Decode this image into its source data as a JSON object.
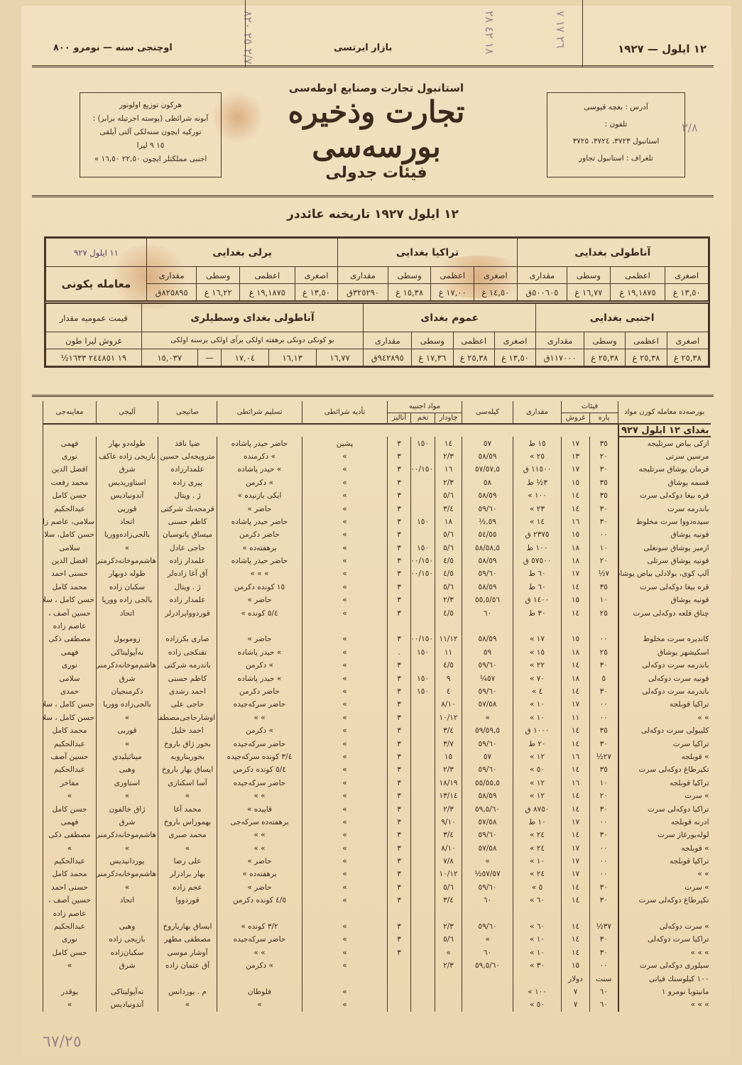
{
  "top": {
    "right": "١٢ ايلول — ١٩٢٧",
    "center": "بازار ايرتسی",
    "left": "اوچنجی سنه — نومرو ٨٠٠"
  },
  "handwritten": {
    "top_a": "٢/٧ ٢٥ ٨٢٠",
    "top_b": "١٨ ٤٢ ٢٨",
    "top_c": "٢٦ ١٧ ٧",
    "side": "٣/٨",
    "bottom": "٦٧/٢٥"
  },
  "header": {
    "org": "استانبول تجارت وصنايع اوطه‌سی",
    "title": "تجارت وذخيره بورسه‌سی",
    "subtitle": "فيئات جدولی",
    "left_box": [
      "هركون توزيع اولونور",
      "آبونه شرائطی (پوسته اجرتيله برابر) :",
      "توركيه ايچون     سنه‌لكی  آلتی آيلقی",
      "١٥      ٩   ليرا",
      "اجنبی مملكتلر ايچون ٢٢,٥٠  ١٦,٥٠ »"
    ],
    "right_box": [
      "آدرس : بغچه قپوسی",
      "تلفون :",
      "استانبول ٣٧٢٣، ٣٧٢٤، ٣٧٢٥",
      "تلغراف : استانبول تجاور"
    ],
    "date_line": "١٢ ايلول ١٩٢٧ تاريخنه عائددر"
  },
  "summary": {
    "date": "١١ ايلول ٩٢٧",
    "day_label": "معامله يكونی",
    "sub": [
      "اصغری",
      "اعظمی",
      "وسطی",
      "مقداری"
    ],
    "groups_row1": [
      {
        "name": "آناطولی بغدايی",
        "values": [
          "١٣,٥٠ غ",
          "١٩,١٨٧٥ غ",
          "١٦,٧٧ غ",
          "٥٠٠٦٠٥ق"
        ]
      },
      {
        "name": "تراكيا بغدايی",
        "values": [
          "١٤,٥٠ غ",
          "١٧,٠٠ غ",
          "١٥,٣٨ غ",
          "٣٢٥٢٩٠ق"
        ]
      },
      {
        "name": "يرلی بغدايی",
        "values": [
          "١٣,٥٠ غ",
          "١٩,١٨٧٥ غ",
          "١٦,٢٢ غ",
          "٨٢٥٨٩٥ق"
        ]
      }
    ],
    "groups_row2": [
      {
        "name": "اجنبی بغدايی",
        "values": [
          "٢٥,٣٨ غ",
          "٢٥,٣٨ غ",
          "٢٥,٣٨ غ",
          "١١٧٠٠٠ق"
        ]
      },
      {
        "name": "عموم بغدای",
        "values": [
          "١٣,٥٠ غ",
          "٢٥,٣٨ غ",
          "١٧,٣٦ غ",
          "٩٤٢٨٩٥ق"
        ]
      }
    ],
    "avg_title": "آناطولی بغدای وسطيلری",
    "avg_header": "بو كونكی دونكی برهفته اولكی برآی اولكی برسنه اولكی",
    "avg_values": [
      "١٦,٧٧",
      "١٦,١٣",
      "١٧,٠٤",
      "—",
      "١٥,٠٣٧"
    ],
    "total_header": "قيمت عموميه   مقدار",
    "total_units": "غروش  ليرا   طون",
    "total_values": "١٩  ٢٤٤٨٥١  ١٦٣٣½"
  },
  "table": {
    "headers": {
      "material": "بورصه‌ده معامله كورن مواد",
      "price": "فيئات",
      "para": "پاره",
      "gurush": "غروش",
      "miqdar": "مقداری",
      "kile": "كيله‌سی",
      "foreign": "مواد اجنبيه",
      "chavdar": "چاودار",
      "tohum": "تخم",
      "analiz": "آناليز",
      "tediye": "تأديه شرائطی",
      "teslim": "تسليم شرائطی",
      "seller": "صاتيجی",
      "buyer": "آليجی",
      "broker": "معاينه‌جی"
    },
    "section": "بغدای ١٢ ايلول ٩٢٧",
    "rows": [
      [
        "ازكی بياض سرتليجه",
        "٣٥",
        "١٧",
        "١٥ ط",
        "٥٧",
        "١٤",
        "١٥٠",
        "٣",
        "پشين",
        "حاضر حيدر پاشاده",
        "ضيا نافذ",
        "طوله‌دو بهار",
        "فهمی"
      ],
      [
        "مرسين سرتی",
        "٢٠",
        "١٣",
        "٢٥ »",
        "٥٨/٥٩",
        "٢/٣",
        "",
        "٣",
        "»",
        "» دكرمنده",
        "متروپجه‌لی حسين",
        "بازيجی زاده عاكف",
        "نوری"
      ],
      [
        "قرمان يوشاق سرتليجه",
        "٣٠",
        "١٧",
        "١١٥٠٠ ق",
        "٥٧/٥٧,٥",
        "١٦",
        "١٠٠/١٥٠",
        "٣",
        "»",
        "» حيدر پاشاده",
        "علمدارزاده",
        "شرق",
        "افضل الدين"
      ],
      [
        "قسمه يوشاق",
        "٣٥",
        "١٥",
        "٣½ ط",
        "٥٨",
        "٢/٣",
        "",
        "٣",
        "»",
        "» دكرمن",
        "پيری زاده",
        "استاوريديس",
        "محمد رفعت"
      ],
      [
        "قره بيغا دوكه‌لی سرت",
        "٣٥",
        "١٤",
        "١٠٠ »",
        "٥٨/٥٩",
        "٥/٦",
        "",
        "٣",
        "»",
        "ايكی بازنيده »",
        "ژ . ويتال",
        "آندونيادیس",
        "حسن كامل"
      ],
      [
        "باندرمه سرت",
        "٣٠",
        "١٤",
        "٢٣ »",
        "٥٩/٦٠",
        "٣/٤",
        "",
        "٣",
        "»",
        "حاضر »",
        "قرمجه‌بك شركتی",
        "قوريی",
        "عبدالحكيم"
      ],
      [
        "سيده‌دووا سرت مخلوط",
        "٣٠",
        "١٦",
        "١٤ »",
        "٥٩,½",
        "١٨",
        "١٥٠",
        "٣",
        "»",
        "حاضر حيدر پاشاده",
        "كاظم حسنی",
        "اتحاد",
        "سلامی، عاصم زاده"
      ],
      [
        "قونيه يوشاق",
        "٠٠",
        "١٥",
        "٢٣٧٥ ق",
        "٥٤/٥٥",
        "٥/٦",
        "",
        "٣",
        "»",
        "حاضر دكرمن",
        "ميساق پاتوسيان",
        "بالجی‌زاده‌ووريا",
        "حسن كامل، سلامی"
      ],
      [
        "ازمير يوشاق سونغلی",
        "١٠",
        "١٨",
        "١٠٠ ط",
        "٥٨/٥٨,٥",
        "٥/٦",
        "١٥٠",
        "٣",
        "»",
        "برهفته‌ده »",
        "حاجی عادل",
        "»",
        "سلامی"
      ],
      [
        "قونيه يوشاق سرتلی",
        "٢٠",
        "١٨",
        "٥٧٥٠٠ ق",
        "٥٨/٥٩",
        "٤/٥",
        "١٠٠/١٥٠",
        "٣",
        "»",
        "حاضر حيدر پاشاده",
        "علمدار زاده",
        "هاشم‌موخانه‌دكرمنی",
        "افضل الدين"
      ],
      [
        "آلپ كوی، بولادلی بياض يوشاق",
        "٧½",
        "١٧",
        "٦٠ ط",
        "٥٩/٦٠",
        "٤/٥",
        "١٠٠/١٥٠",
        "٣",
        "»",
        "» » »",
        "آق آغا زاده‌لر",
        "طوله دوبهار",
        "حسنی احمد"
      ],
      [
        "قره بيغا دوكه‌لی سرت",
        "٣٥",
        "١٤",
        "٦٠ ط",
        "٥٨/٥٩",
        "٥/٦",
        "",
        "٣",
        "»",
        "١٥ كونده دكرمن",
        "ژ . ويتال",
        "سكبان زاده",
        "محمد كامل"
      ],
      [
        "قونيه يوشاق",
        "١٠",
        "١٥",
        "١٤٠٠ ق",
        "٥٥,٥/٥٦",
        "٢/٣",
        "",
        "٣",
        "»",
        "حاضر »",
        "علمدار زاده",
        "بالجی زاده ووريا",
        "حسن كامل ، سلامی"
      ],
      [
        "چناق قلعه دوكه‌لی سرت",
        "٢٥",
        "١٤",
        "٣٠ ط",
        "٦٠",
        "٤/٥",
        "",
        "٣",
        "»",
        "٥/٤ كونده »",
        "قوردوواپرادرلر",
        "اتحاد",
        "حسين آصف ،"
      ],
      [
        "",
        "",
        "",
        "",
        "",
        "",
        "",
        "",
        "",
        "",
        "",
        "",
        "عاصم زاده"
      ],
      [
        "كانديره سرت مخلوط",
        "٠٠",
        "١٥",
        "١٧ »",
        "٥٨/٥٩",
        "١١/١٢",
        "١٠٠/١٥٠",
        "٣",
        "»",
        "حاضر »",
        "صاری بكرزاده",
        "زوموبول",
        "مصطفی ذكی"
      ],
      [
        "اسكيشهر يوشاق",
        "٢٥",
        "١٨",
        "١٥ »",
        "٥٩",
        "١١",
        "١٥٠",
        ".",
        "»",
        "» حيدر پاشاده",
        "تفنكجی زاده",
        "نه‌آپوليتاكی",
        "فهمی"
      ],
      [
        "باندرمه سرت دوكه‌لی",
        "٣٠",
        "١٤",
        "٢٢ »",
        "٥٩/٦٠",
        "٤/٥",
        "",
        "٣",
        "»",
        "» دكرمن",
        "باندرمه شركتی",
        "هاشم‌موخانه‌دكرمنی",
        "نوری"
      ],
      [
        "قونيه سرت دوكه‌لی",
        "٥",
        "١٨",
        "٧٠ »",
        "٥٧¼",
        "٩",
        "١٥٠",
        "٣",
        "»",
        "» حيدر پاشاده",
        "كاظم حسنی",
        "شرق",
        "سلامی"
      ],
      [
        "باندرمه سرت دوكه‌لی",
        "٣٠",
        "١٤",
        "٤ »",
        "٥٩/٦٠",
        "٤",
        "١٥٠",
        "٣",
        "»",
        "حاضر دكرمن",
        "احمد رشدی",
        "دكرمنجيان",
        "حمدی"
      ],
      [
        "تراكيا قوبلجه",
        "٠٠",
        "١٧",
        "١٠ »",
        "٥٧/٥٨",
        "٨/١٠",
        "",
        "٣",
        "»",
        "حاضر سركه‌جيده",
        "حاجی علی",
        "بالجی‌زاده ووريا",
        "حسن كامل ، سلامی"
      ],
      [
        "» »",
        "٠٠",
        "١١",
        "١٠ »",
        "»",
        "١٠/١٢",
        "",
        "٣",
        "»",
        "» »",
        "اوشارحاجی‌مصطفی",
        "»",
        "حسن كامل ، سلامی"
      ],
      [
        "كليبولی سرت دوكه‌لی",
        "٣٥",
        "١٤",
        "١٠٠٠ ق",
        "٥٩/٥٩,٥",
        "٣/٤",
        "",
        "٣",
        "»",
        "» دكرمن",
        "احمد خليل",
        "قوربی",
        "محمد كامل"
      ],
      [
        "تراكيا سرت",
        "٣٠",
        "١٤",
        "٢٠ ط",
        "٥٩/٦٠",
        "٣/٧",
        "",
        "٣",
        "»",
        "حاضر سركه‌جيده",
        "بخور ژاق باروخ",
        "»",
        "عبدالحكيم"
      ],
      [
        "» قوبلجه",
        "٢٧½",
        "١٦",
        "١٢ »",
        "٥٧",
        "١٥",
        "",
        "٣",
        "»",
        "٣/٤ كونده سركه‌جيده",
        "بخوربناروبه",
        "ميناثيليدی",
        "حسين آصف"
      ],
      [
        "تكيرطاغ دوكه‌لی سرت",
        "٣٥",
        "١٤",
        "٥٠ »",
        "٥٩/٦٠",
        "٢/٣",
        "",
        "٣",
        "»",
        "٥/٤ كونده دكرمن",
        "ايساق بهار باروخ",
        "وهبی",
        "عبدالحكيم"
      ],
      [
        "تراكيا قوبلجه",
        "١٠",
        "١٦",
        "١٢ »",
        "٥٥/٥٥,٥",
        "١٨/١٩",
        "",
        "٣",
        "»",
        "حاضر سركه‌جيده",
        "آسا اسكنازی",
        "استاوری",
        "مفاخر"
      ],
      [
        "» سرت",
        "٢٠",
        "١٤",
        "١٢ »",
        "٥٨/٥٩",
        "١٣/١٤",
        "",
        "٣",
        "»",
        "» »",
        "»",
        "»",
        "»"
      ],
      [
        "تراكيا دوكه‌لی سرت",
        "٣٠",
        "١٤",
        "٨٧٥٠ ق",
        "٥٩,٥/٦٠",
        "٢/٣",
        "",
        "٣",
        "»",
        "قاپيده »",
        "محمد آغا",
        "ژاق خالفون",
        "حسن كامل"
      ],
      [
        "ادرنه قوبلجه",
        "٠٠",
        "١٧",
        "١٠ ط",
        "٥٧/٥٨",
        "٩/١٠",
        "",
        "٣",
        "»",
        "برهفته‌ده سركه‌جی",
        "بهموراس باروخ",
        "شرق",
        "فهمی"
      ],
      [
        "لوله‌بورغاز سرت",
        "٣٠",
        "١٤",
        "٢٤ »",
        "٥٩/٦٠",
        "٣/٤",
        "",
        "٣",
        "»",
        "» »",
        "محمد صبری",
        "هاشم‌موخانه‌دكرمنی",
        "مصطفی ذكی"
      ],
      [
        "» قوبلجه",
        "٠٠",
        "١٧",
        "٢٤ »",
        "٥٧/٥٨",
        "٨/١٠",
        "",
        "٣",
        "»",
        "» »",
        "»",
        "»",
        "»"
      ],
      [
        "تراكيا قوبلجه",
        "٠٠",
        "١٧",
        "١٠ »",
        "»",
        "٧/٨",
        "",
        "٣",
        "»",
        "حاضر »",
        "علی رضا",
        "يوردانيديس",
        "عبدالحكيم"
      ],
      [
        "» »",
        "٠٠",
        "١٧",
        "٢٤ »",
        "٥٧/٥٧½",
        "١٠/١٢",
        "",
        "٣",
        "»",
        "برهفته‌ده »",
        "بهار برادرلر",
        "هاشم‌موخانه‌دكرمنی",
        "محمد كامل"
      ],
      [
        "» سرت",
        "٣٠",
        "١٤",
        "٥ »",
        "٥٩/٦٠",
        "٥/٦",
        "",
        "٣",
        "»",
        "حاضر »",
        "عجم زاده",
        "»",
        "حسنی احمد"
      ],
      [
        "تكيرطاغ دوكه‌لی سرت",
        "٣٠",
        "١٤",
        "٦٠ »",
        "٦٠",
        "٣/٤",
        "",
        "٣",
        "»",
        "٤/٥ كونده دكرمن",
        "قوردووا",
        "اتحاد",
        "حسين آصف ،"
      ],
      [
        "",
        "",
        "",
        "",
        "",
        "",
        "",
        "",
        "",
        "",
        "",
        "",
        "عاصم زاده"
      ],
      [
        "» سرت دوكه‌لی",
        "٣٧½",
        "١٤",
        "٦٠ »",
        "٥٩/٦٠",
        "٢/٣",
        "",
        "٣",
        "»",
        "٣/٢ كونده »",
        "ايساق بهارباروخ",
        "وهبی",
        "عبدالحكيم"
      ],
      [
        "تراكيا سرت دوكه‌لی",
        "٣٠",
        "١٤",
        "١٠ »",
        "»",
        "٥/٦",
        "",
        "٣",
        "»",
        "حاضر سركه‌جيده",
        "مصطفی مظهر",
        "بازيجی زاده",
        "نوری"
      ],
      [
        "» » »",
        "٣٠",
        "١٤",
        "١٠ »",
        "٦٠",
        "»",
        "",
        "٣",
        "»",
        "» »",
        "آوشار موسی",
        "سكبان‌زاده",
        "حسن كامل"
      ],
      [
        "سيلوری دوكه‌لی سرت",
        "٠٠",
        "١٥",
        "٣٠ »",
        "٥٩,٥/٦٠",
        "٢/٣",
        "",
        "",
        "»",
        "» دكرمن",
        "آق عثمان زاده",
        "شرق",
        "»"
      ],
      [
        "١٠٠ كيلوسنك فياتی",
        "سنت",
        "دولار",
        "",
        "",
        "",
        "",
        "",
        "",
        "",
        "",
        "",
        ""
      ],
      [
        "مانيتوبا نومرو ١",
        "٦٠",
        "٧",
        "١٠٠ »",
        "",
        "",
        "",
        "",
        "»",
        "فلوطان",
        "م . يوردانس",
        "نه‌آپوليتاكی",
        "يوقدر"
      ],
      [
        "» » »",
        "٦٠",
        "٧",
        "٥٠ »",
        "",
        "",
        "",
        "",
        "»",
        "»",
        "»",
        "آندونيادیس",
        "»"
      ]
    ]
  }
}
